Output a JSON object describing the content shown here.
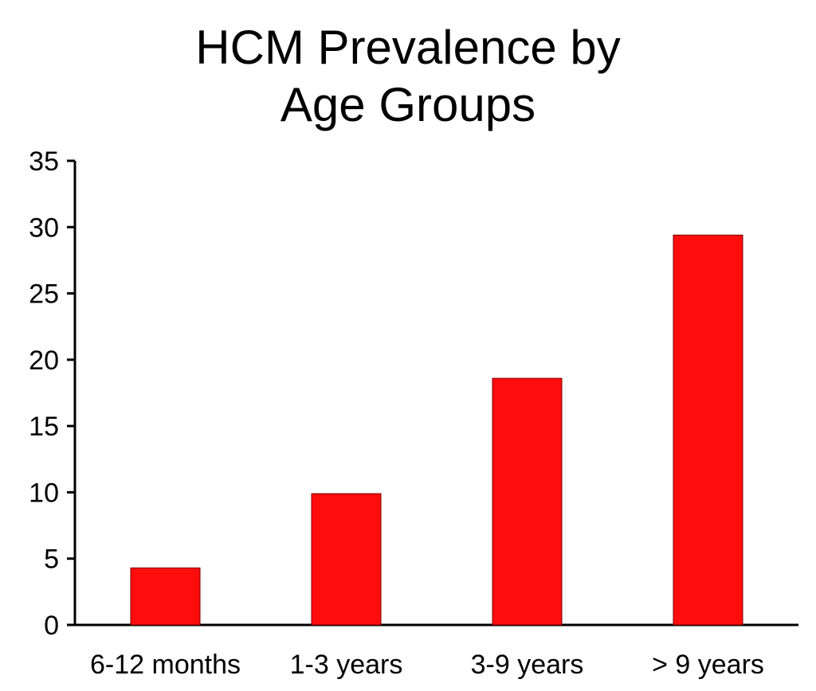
{
  "chart_data": {
    "type": "bar",
    "title_lines": [
      "HCM Prevalence by",
      "Age Groups"
    ],
    "categories": [
      "6-12 months",
      "1-3 years",
      "3-9 years",
      "> 9 years"
    ],
    "values": [
      4.3,
      9.9,
      18.6,
      29.4
    ],
    "ylim": [
      0,
      35
    ],
    "yticks": [
      0,
      5,
      10,
      15,
      20,
      25,
      30,
      35
    ],
    "xlabel": "",
    "ylabel": "",
    "grid": false,
    "legend": "none",
    "bar_color": "#ff0d0d"
  }
}
